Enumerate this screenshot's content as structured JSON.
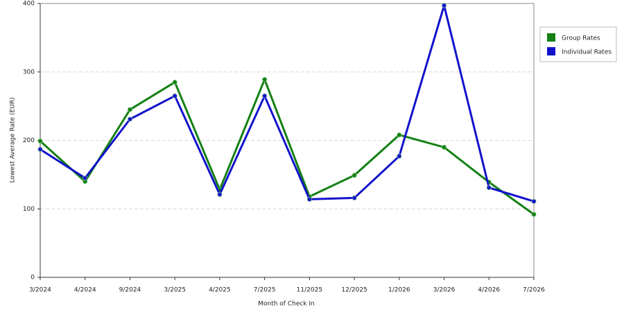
{
  "chart_data": {
    "type": "line",
    "x_label": "Month of Check In",
    "y_label": "Lowest Average Rate (EUR)",
    "categories": [
      "3/2024",
      "4/2024",
      "9/2024",
      "3/2025",
      "4/2025",
      "7/2025",
      "11/2025",
      "12/2025",
      "1/2026",
      "3/2026",
      "4/2026",
      "7/2026"
    ],
    "series": [
      {
        "name": "Group Rates",
        "color": "#138013",
        "values": [
          199,
          140,
          245,
          285,
          128,
          289,
          118,
          149,
          208,
          190,
          139,
          92
        ]
      },
      {
        "name": "Individual Rates",
        "color": "#1212cc",
        "values": [
          187,
          145,
          231,
          265,
          121,
          265,
          114,
          116,
          177,
          397,
          131,
          111
        ]
      }
    ],
    "ylim": [
      0,
      400
    ],
    "yticks": [
      0,
      100,
      200,
      300,
      400
    ],
    "grid": true,
    "legend": "right"
  }
}
